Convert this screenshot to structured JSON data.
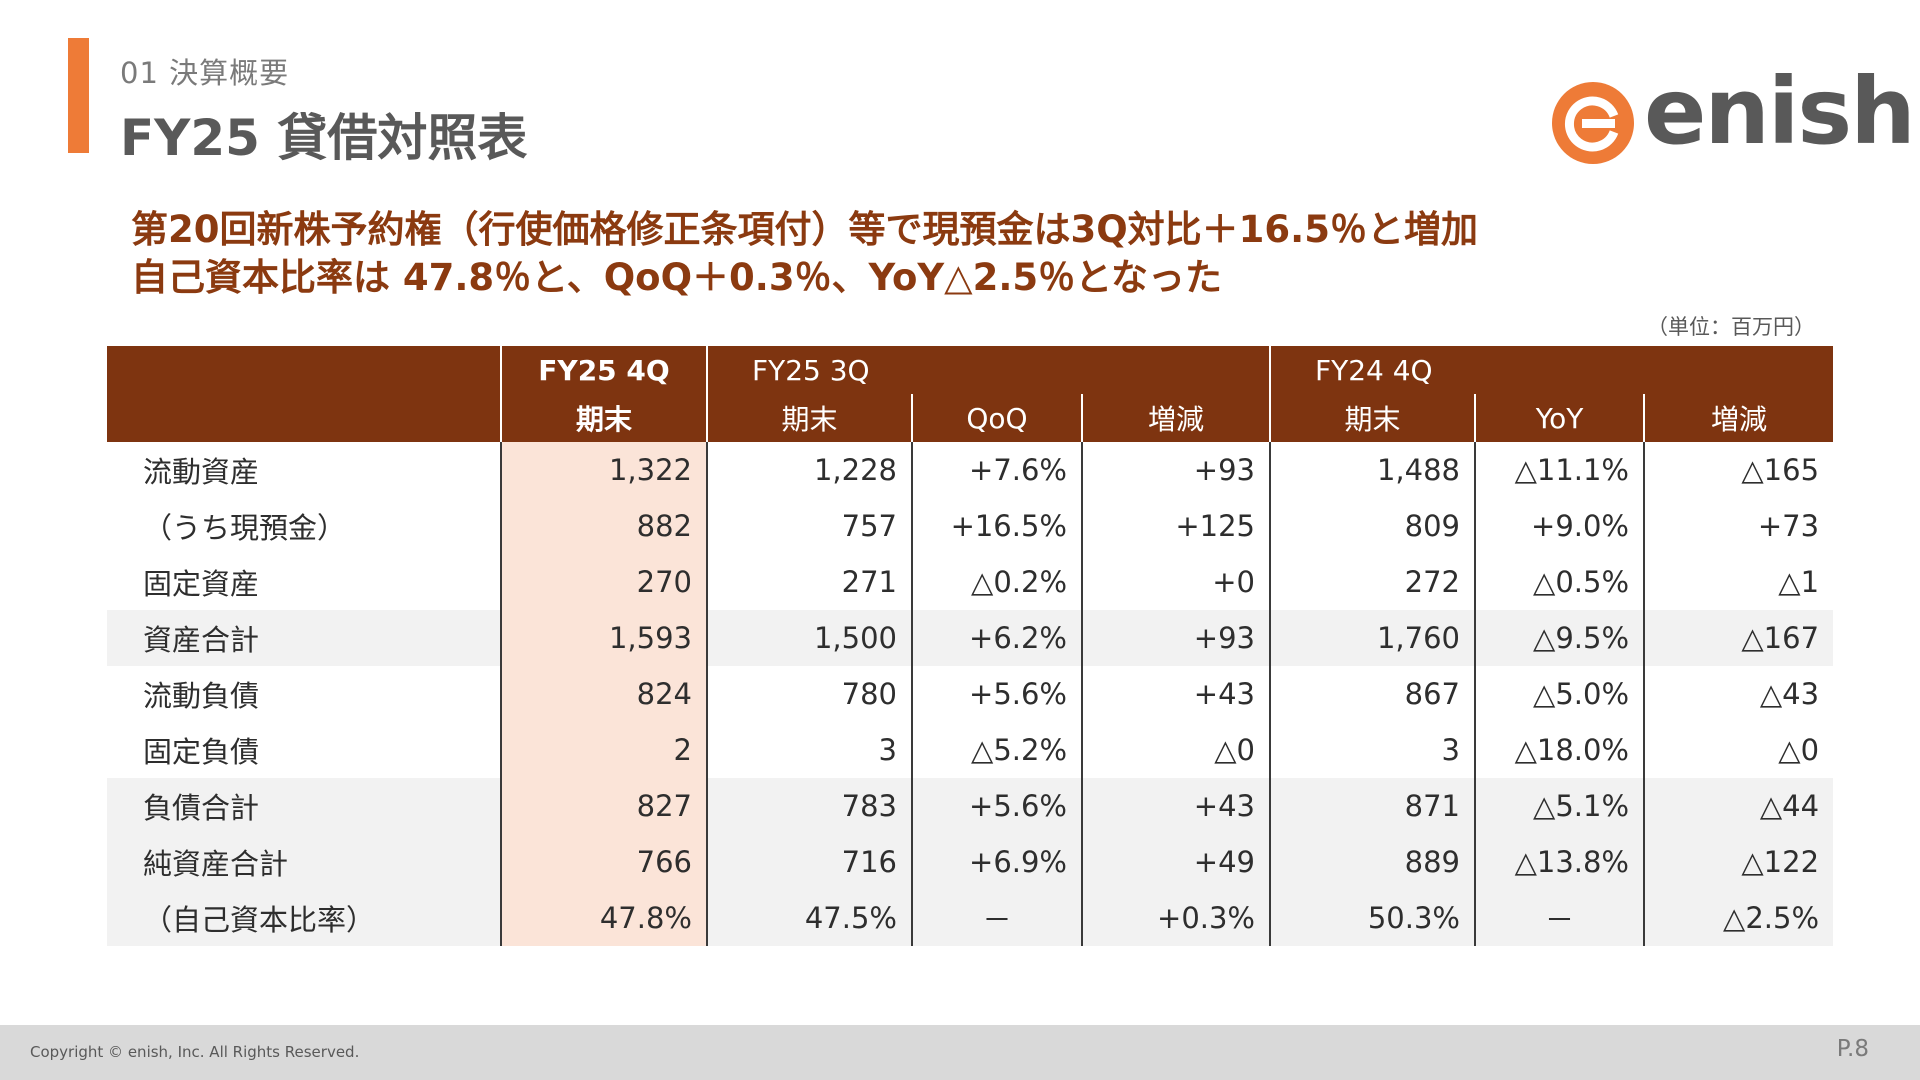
{
  "header": {
    "section_label": "01 決算概要",
    "title": "FY25 貸借対照表"
  },
  "logo": {
    "text": "enish",
    "brand_color": "#ee7b37"
  },
  "headline": {
    "line1": "第20回新株予約権（行使価格修正条項付）等で現預金は3Q対比＋16.5％と増加",
    "line2": "自己資本比率は 47.8％と、QoQ＋0.3％、YoY△2.5％となった"
  },
  "unit_note": "（単位：百万円）",
  "table": {
    "header": {
      "fy25_4q": "FY25 4Q",
      "fy25_4q_sub": "期末",
      "fy25_3q": "FY25 3Q",
      "fy25_3q_sub": "期末",
      "qoq": "QoQ",
      "qoq_diff": "増減",
      "fy24_4q": "FY24 4Q",
      "fy24_4q_sub": "期末",
      "yoy": "YoY",
      "yoy_diff": "増減"
    },
    "rows": [
      {
        "label": "流動資産",
        "fy25_4q": "1,322",
        "fy25_3q": "1,228",
        "qoq": "+7.6%",
        "qoq_diff": "+93",
        "fy24_4q": "1,488",
        "yoy": "△11.1%",
        "yoy_diff": "△165"
      },
      {
        "label": "（うち現預金）",
        "fy25_4q": "882",
        "fy25_3q": "757",
        "qoq": "+16.5%",
        "qoq_diff": "+125",
        "fy24_4q": "809",
        "yoy": "+9.0%",
        "yoy_diff": "+73"
      },
      {
        "label": "固定資産",
        "fy25_4q": "270",
        "fy25_3q": "271",
        "qoq": "△0.2%",
        "qoq_diff": "+0",
        "fy24_4q": "272",
        "yoy": "△0.5%",
        "yoy_diff": "△1"
      },
      {
        "label": "資産合計",
        "fy25_4q": "1,593",
        "fy25_3q": "1,500",
        "qoq": "+6.2%",
        "qoq_diff": "+93",
        "fy24_4q": "1,760",
        "yoy": "△9.5%",
        "yoy_diff": "△167"
      },
      {
        "label": "流動負債",
        "fy25_4q": "824",
        "fy25_3q": "780",
        "qoq": "+5.6%",
        "qoq_diff": "+43",
        "fy24_4q": "867",
        "yoy": "△5.0%",
        "yoy_diff": "△43"
      },
      {
        "label": "固定負債",
        "fy25_4q": "2",
        "fy25_3q": "3",
        "qoq": "△5.2%",
        "qoq_diff": "△0",
        "fy24_4q": "3",
        "yoy": "△18.0%",
        "yoy_diff": "△0"
      },
      {
        "label": "負債合計",
        "fy25_4q": "827",
        "fy25_3q": "783",
        "qoq": "+5.6%",
        "qoq_diff": "+43",
        "fy24_4q": "871",
        "yoy": "△5.1%",
        "yoy_diff": "△44"
      },
      {
        "label": "純資産合計",
        "fy25_4q": "766",
        "fy25_3q": "716",
        "qoq": "+6.9%",
        "qoq_diff": "+49",
        "fy24_4q": "889",
        "yoy": "△13.8%",
        "yoy_diff": "△122"
      },
      {
        "label": "（自己資本比率）",
        "fy25_4q": "47.8%",
        "fy25_3q": "47.5%",
        "qoq": "－",
        "qoq_diff": "+0.3%",
        "fy24_4q": "50.3%",
        "yoy": "－",
        "yoy_diff": "△2.5%"
      }
    ]
  },
  "footer": {
    "copyright": "Copyright © enish, Inc. All Rights Reserved.",
    "page": "P.8"
  }
}
